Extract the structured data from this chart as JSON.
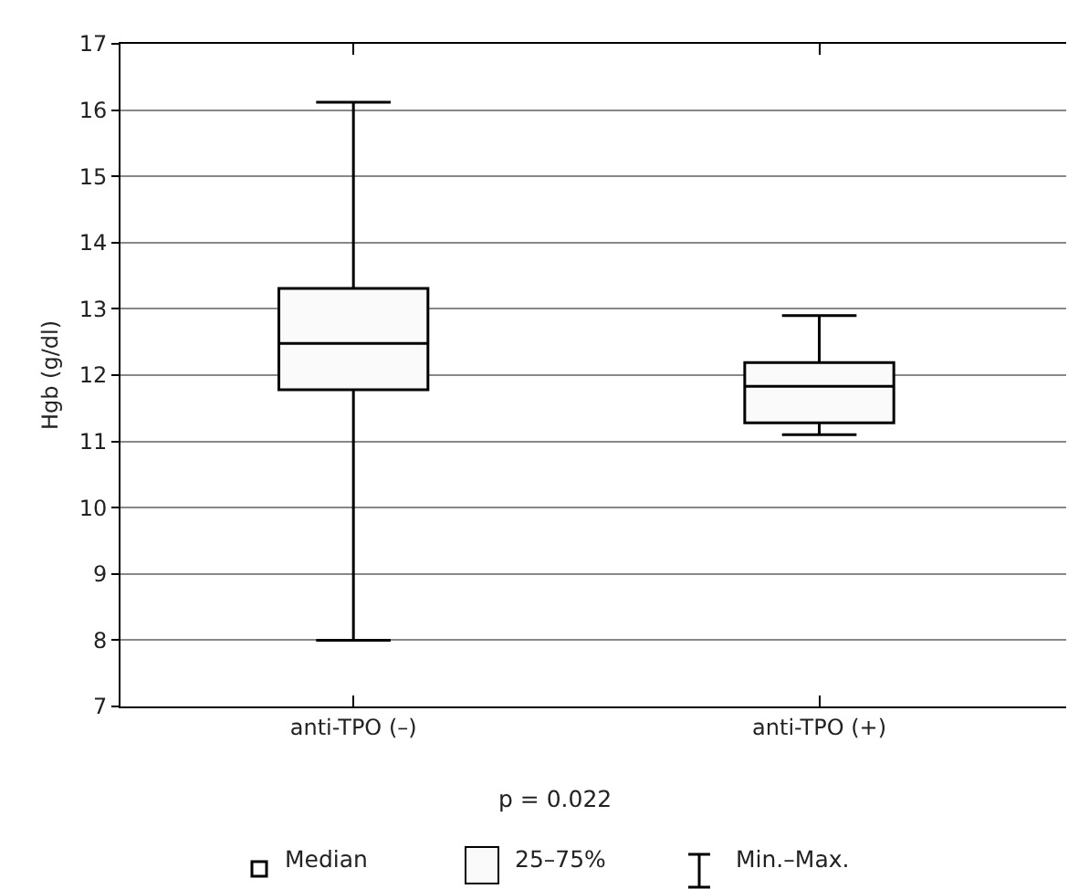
{
  "chart_data": {
    "type": "box",
    "ylabel": "Hgb (g/dl)",
    "categories": [
      "anti-TPO (–)",
      "anti-TPO (+)"
    ],
    "boxes": [
      {
        "low": 8.0,
        "q1": 11.78,
        "median": 12.48,
        "q3": 13.31,
        "high": 16.12
      },
      {
        "low": 11.1,
        "q1": 11.28,
        "median": 11.83,
        "q3": 12.19,
        "high": 12.9
      }
    ],
    "ylim": [
      7,
      17
    ],
    "yticks": [
      7,
      8,
      9,
      10,
      11,
      12,
      13,
      14,
      15,
      16,
      17
    ],
    "grid": "y",
    "annotations": [
      "p = 0.022",
      "Median",
      "25–75%",
      "Min.–Max."
    ]
  }
}
